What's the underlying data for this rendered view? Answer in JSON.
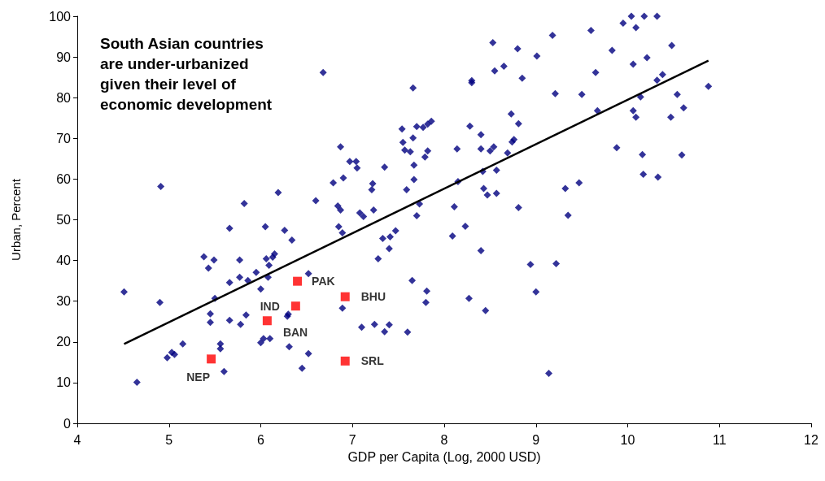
{
  "chart_data": {
    "type": "scatter",
    "title": "South Asian countries\nare under-urbanized\ngiven their level of\neconomic development",
    "xlabel": "GDP per Capita (Log, 2000 USD)",
    "ylabel": "Urban, Percent",
    "xlim": [
      4,
      12
    ],
    "xticks": [
      4,
      5,
      6,
      7,
      8,
      9,
      10,
      11,
      12
    ],
    "ylim": [
      0,
      100
    ],
    "yticks": [
      0,
      10,
      20,
      30,
      40,
      50,
      60,
      70,
      80,
      90,
      100
    ],
    "grid": false,
    "series": [
      {
        "marker": "diamond",
        "color": "#000080",
        "x": [
          6.68,
          4.91,
          6.87,
          6.9,
          6.79,
          6.19,
          5.82,
          6.6,
          6.84,
          6.87,
          5.66,
          6.05,
          6.26,
          6.34,
          6.85,
          6.89,
          5.38,
          5.49,
          5.43,
          5.77,
          6.06,
          6.15,
          6.13,
          6.09,
          5.95,
          5.77,
          5.86,
          6.08,
          5.66,
          6.0,
          6.52,
          4.51,
          4.9,
          5.5,
          5.45,
          5.45,
          5.66,
          5.78,
          5.84,
          6.3,
          6.29,
          5.15,
          4.98,
          5.03,
          5.06,
          5.56,
          5.56,
          5.6,
          4.65,
          6.03,
          6.0,
          6.1,
          6.31,
          6.52,
          6.45,
          6.89,
          9.18,
          8.53,
          8.8,
          9.01,
          8.55,
          8.65,
          8.85,
          8.3,
          8.3,
          7.66,
          9.21,
          9.5,
          8.73,
          8.81,
          8.28,
          8.4,
          8.76,
          8.74,
          7.54,
          7.7,
          7.77,
          7.82,
          7.86,
          7.66,
          7.55,
          7.57,
          7.63,
          7.82,
          7.79,
          8.14,
          8.4,
          8.54,
          8.5,
          8.69,
          6.97,
          7.04,
          7.05,
          7.35,
          7.67,
          7.67,
          7.22,
          7.21,
          7.59,
          8.15,
          8.42,
          8.57,
          8.43,
          8.47,
          8.57,
          8.81,
          9.32,
          9.47,
          9.35,
          7.73,
          8.11,
          7.7,
          7.08,
          7.12,
          7.23,
          8.23,
          8.09,
          8.4,
          7.47,
          7.41,
          7.33,
          7.4,
          7.28,
          8.94,
          9.22,
          7.65,
          7.81,
          7.8,
          9.0,
          8.27,
          8.45,
          7.1,
          7.24,
          7.35,
          7.4,
          7.6,
          9.14,
          10.04,
          10.18,
          10.32,
          9.95,
          10.09,
          9.6,
          10.48,
          9.83,
          10.21,
          10.06,
          9.65,
          10.38,
          10.32,
          10.88,
          10.14,
          10.54,
          9.67,
          10.06,
          10.09,
          10.47,
          10.61,
          9.88,
          10.16,
          10.59,
          10.17,
          10.33
        ],
        "values": [
          86.2,
          58.2,
          67.9,
          60.3,
          59.1,
          56.7,
          54.0,
          54.7,
          53.4,
          52.4,
          47.9,
          48.3,
          47.4,
          45.0,
          48.3,
          46.8,
          40.9,
          40.1,
          38.1,
          40.1,
          40.4,
          41.6,
          40.8,
          38.8,
          37.1,
          35.9,
          35.1,
          35.9,
          34.6,
          33.0,
          36.8,
          32.3,
          29.7,
          30.7,
          26.9,
          24.8,
          25.3,
          24.3,
          26.6,
          26.8,
          26.3,
          19.5,
          16.1,
          17.4,
          16.9,
          19.5,
          18.3,
          12.7,
          10.1,
          20.8,
          19.8,
          20.8,
          18.8,
          17.1,
          13.5,
          28.3,
          95.3,
          93.5,
          92.0,
          90.2,
          86.6,
          87.7,
          84.8,
          84.2,
          83.7,
          82.4,
          81.0,
          80.8,
          76.0,
          73.6,
          73.0,
          70.9,
          69.7,
          69.1,
          72.3,
          72.9,
          72.7,
          73.5,
          74.2,
          70.1,
          69.0,
          67.1,
          66.7,
          66.9,
          65.4,
          67.4,
          67.4,
          67.9,
          66.9,
          66.4,
          64.3,
          64.3,
          62.7,
          62.9,
          63.4,
          59.9,
          58.9,
          57.4,
          57.4,
          59.4,
          61.9,
          62.2,
          57.7,
          56.1,
          56.5,
          53.0,
          57.7,
          59.1,
          51.1,
          53.9,
          53.2,
          51.0,
          51.7,
          50.8,
          52.4,
          48.4,
          46.0,
          42.4,
          47.3,
          45.8,
          45.4,
          42.9,
          40.4,
          39.0,
          39.2,
          35.1,
          32.5,
          29.7,
          32.3,
          30.7,
          27.7,
          23.6,
          24.3,
          22.5,
          24.2,
          22.4,
          12.3,
          100,
          100,
          100,
          98.3,
          97.2,
          96.5,
          92.8,
          91.6,
          89.8,
          88.2,
          86.2,
          85.7,
          84.3,
          82.8,
          80.2,
          80.8,
          76.8,
          76.8,
          75.2,
          75.2,
          77.5,
          67.7,
          66.0,
          65.9,
          61.2,
          60.5
        ]
      },
      {
        "marker": "square",
        "color": "#ff0000",
        "x": [
          6.4,
          6.38,
          6.92,
          6.07,
          6.92,
          5.46
        ],
        "values": [
          34.9,
          28.8,
          31.1,
          25.2,
          15.3,
          15.8
        ],
        "value_labels": [
          "PAK",
          "IND",
          "BHU",
          "BAN",
          "SRL",
          "NEP"
        ]
      },
      {
        "type": "line",
        "marker": "none",
        "line_style": "solid",
        "color": "#000000",
        "x": [
          4.51,
          10.88
        ],
        "values": [
          19.5,
          89.1
        ]
      }
    ]
  }
}
